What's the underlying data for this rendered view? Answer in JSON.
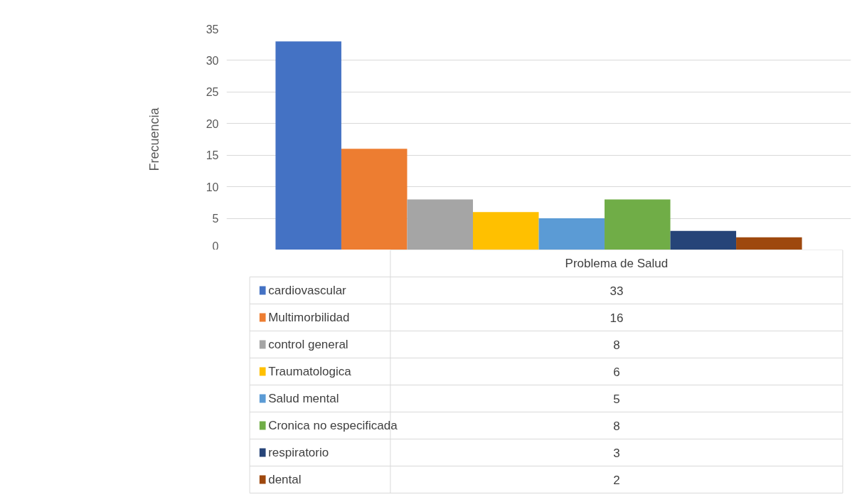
{
  "chart_data": {
    "type": "bar",
    "ylabel": "Frecuencia",
    "categories": [
      "Problema de Salud"
    ],
    "series": [
      {
        "name": "cardiovascular",
        "color": "#4472c4",
        "values": [
          33
        ]
      },
      {
        "name": "Multimorbilidad",
        "color": "#ed7d31",
        "values": [
          16
        ]
      },
      {
        "name": "control general",
        "color": "#a5a5a5",
        "values": [
          8
        ]
      },
      {
        "name": "Traumatologica",
        "color": "#ffc000",
        "values": [
          6
        ]
      },
      {
        "name": "Salud mental",
        "color": "#5b9bd5",
        "values": [
          5
        ]
      },
      {
        "name": "Cronica no especificada",
        "color": "#70ad47",
        "values": [
          8
        ]
      },
      {
        "name": "respiratorio",
        "color": "#264478",
        "values": [
          3
        ]
      },
      {
        "name": "dental",
        "color": "#9e480e",
        "values": [
          2
        ]
      }
    ],
    "annotations": [
      "33",
      "16",
      "8",
      "6",
      "5",
      "8",
      "3",
      "2"
    ],
    "ylim": [
      0,
      35
    ],
    "yticks": [
      0,
      5,
      10,
      15,
      20,
      25,
      30,
      35
    ],
    "grid": "y",
    "legend": "bottom"
  }
}
